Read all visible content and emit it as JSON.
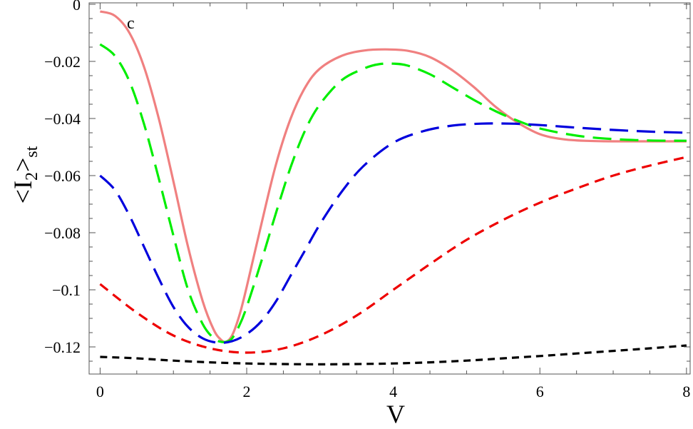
{
  "chart_data": {
    "type": "line",
    "panel_label": "c",
    "xlabel": "V",
    "ylabel": "<I2>st",
    "ylabel_parts": {
      "open": "<I",
      "sub1": "2",
      "close": ">",
      "sub2": "st"
    },
    "xlim": [
      -0.15,
      8.05
    ],
    "ylim": [
      -0.1295,
      0.0005
    ],
    "xticks": [
      {
        "value": 0,
        "label": "0"
      },
      {
        "value": 2,
        "label": "2"
      },
      {
        "value": 4,
        "label": "4"
      },
      {
        "value": 6,
        "label": "6"
      },
      {
        "value": 8,
        "label": "8"
      }
    ],
    "yticks": [
      {
        "value": 0,
        "label": "0"
      },
      {
        "value": -0.02,
        "label": "−0.02"
      },
      {
        "value": -0.04,
        "label": "−0.04"
      },
      {
        "value": -0.06,
        "label": "−0.06"
      },
      {
        "value": -0.08,
        "label": "−0.08"
      },
      {
        "value": -0.1,
        "label": "−0.1"
      },
      {
        "value": -0.12,
        "label": "−0.12"
      }
    ],
    "grid": false,
    "series": [
      {
        "color": "#f08080",
        "dash": "solid",
        "x": [
          0,
          0.2,
          0.4,
          0.6,
          0.8,
          1.0,
          1.2,
          1.4,
          1.55,
          1.65,
          1.72,
          1.8,
          1.9,
          2.0,
          2.2,
          2.4,
          2.6,
          2.8,
          3.0,
          3.3,
          3.6,
          3.9,
          4.2,
          4.5,
          4.8,
          5.1,
          5.4,
          5.7,
          6.0,
          6.3,
          6.6,
          7.0,
          7.5,
          8.0
        ],
        "y": [
          -0.0025,
          -0.004,
          -0.01,
          -0.022,
          -0.04,
          -0.062,
          -0.085,
          -0.104,
          -0.114,
          -0.1175,
          -0.1182,
          -0.116,
          -0.109,
          -0.099,
          -0.077,
          -0.056,
          -0.04,
          -0.029,
          -0.0225,
          -0.018,
          -0.0162,
          -0.0158,
          -0.0163,
          -0.0185,
          -0.023,
          -0.029,
          -0.036,
          -0.0415,
          -0.0455,
          -0.0472,
          -0.0478,
          -0.048,
          -0.048,
          -0.048
        ]
      },
      {
        "color": "#00ee00",
        "dash": "long",
        "x": [
          0,
          0.2,
          0.4,
          0.6,
          0.8,
          1.0,
          1.2,
          1.4,
          1.55,
          1.65,
          1.72,
          1.8,
          1.9,
          2.0,
          2.2,
          2.4,
          2.6,
          2.8,
          3.0,
          3.3,
          3.6,
          3.8,
          4.0,
          4.2,
          4.5,
          4.8,
          5.1,
          5.4,
          5.7,
          6.0,
          6.5,
          7.0,
          7.5,
          8.0
        ],
        "y": [
          -0.014,
          -0.018,
          -0.027,
          -0.042,
          -0.061,
          -0.081,
          -0.1,
          -0.112,
          -0.117,
          -0.1182,
          -0.1182,
          -0.117,
          -0.1125,
          -0.106,
          -0.09,
          -0.073,
          -0.057,
          -0.044,
          -0.035,
          -0.0265,
          -0.0225,
          -0.021,
          -0.0208,
          -0.0215,
          -0.0245,
          -0.029,
          -0.0335,
          -0.0375,
          -0.0408,
          -0.0435,
          -0.046,
          -0.0472,
          -0.0477,
          -0.0478
        ]
      },
      {
        "color": "#0000dd",
        "dash": "long",
        "x": [
          0,
          0.2,
          0.4,
          0.6,
          0.8,
          1.0,
          1.2,
          1.4,
          1.6,
          1.8,
          2.0,
          2.2,
          2.4,
          2.6,
          2.8,
          3.0,
          3.3,
          3.6,
          4.0,
          4.4,
          4.8,
          5.2,
          5.6,
          6.0,
          6.5,
          7.0,
          7.5,
          8.0
        ],
        "y": [
          -0.06,
          -0.065,
          -0.074,
          -0.085,
          -0.096,
          -0.106,
          -0.113,
          -0.117,
          -0.1185,
          -0.118,
          -0.1155,
          -0.111,
          -0.104,
          -0.095,
          -0.086,
          -0.077,
          -0.0655,
          -0.0565,
          -0.0485,
          -0.0445,
          -0.0425,
          -0.0418,
          -0.0418,
          -0.0423,
          -0.0432,
          -0.044,
          -0.0446,
          -0.045
        ]
      },
      {
        "color": "#ee0000",
        "dash": "medium",
        "x": [
          0,
          0.5,
          1.0,
          1.5,
          2.0,
          2.5,
          3.0,
          3.5,
          4.0,
          4.5,
          5.0,
          5.5,
          6.0,
          6.5,
          7.0,
          7.5,
          8.0
        ],
        "y": [
          -0.098,
          -0.108,
          -0.116,
          -0.1205,
          -0.122,
          -0.1205,
          -0.116,
          -0.109,
          -0.1,
          -0.091,
          -0.0825,
          -0.0755,
          -0.0695,
          -0.0645,
          -0.06,
          -0.0565,
          -0.0535
        ]
      },
      {
        "color": "#000000",
        "dash": "short",
        "x": [
          0,
          0.5,
          1.0,
          1.5,
          2.0,
          2.5,
          3.0,
          3.5,
          4.0,
          4.5,
          5.0,
          5.5,
          6.0,
          6.5,
          7.0,
          7.5,
          8.0
        ],
        "y": [
          -0.1235,
          -0.124,
          -0.1248,
          -0.1254,
          -0.1258,
          -0.126,
          -0.1261,
          -0.126,
          -0.1258,
          -0.1254,
          -0.1248,
          -0.124,
          -0.1232,
          -0.1223,
          -0.1214,
          -0.1205,
          -0.1195
        ]
      }
    ]
  }
}
